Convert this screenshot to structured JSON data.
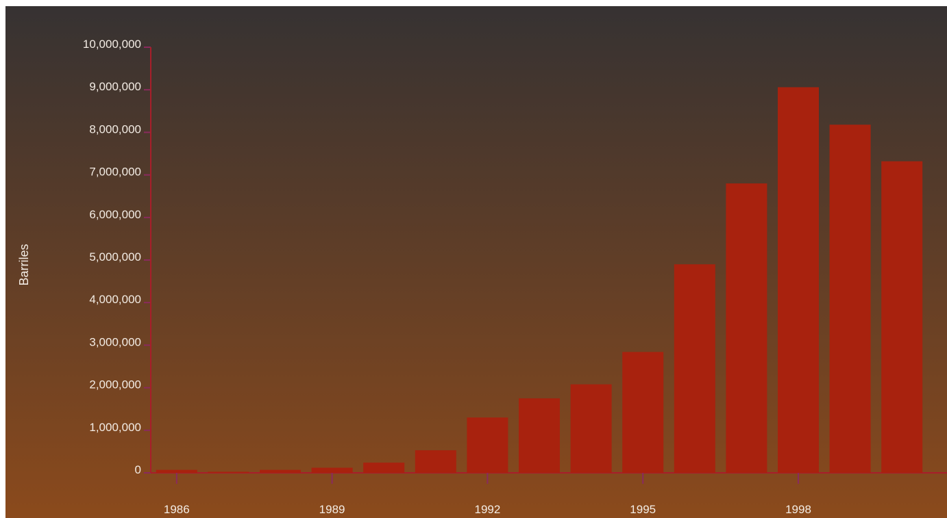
{
  "chart_data": {
    "type": "bar",
    "title": "",
    "xlabel": "",
    "ylabel": "Barriles",
    "ylim": [
      0,
      10000000
    ],
    "y_ticks": [
      0,
      1000000,
      2000000,
      3000000,
      4000000,
      5000000,
      6000000,
      7000000,
      8000000,
      9000000,
      10000000
    ],
    "y_tick_labels": [
      "0",
      "1,000,000",
      "2,000,000",
      "3,000,000",
      "4,000,000",
      "5,000,000",
      "6,000,000",
      "7,000,000",
      "8,000,000",
      "9,000,000",
      "10,000,000"
    ],
    "categories": [
      "1986",
      "1987",
      "1988",
      "1989",
      "1990",
      "1991",
      "1992",
      "1993",
      "1994",
      "1995",
      "1996",
      "1997",
      "1998",
      "1999",
      "2000"
    ],
    "x_tick_labels": [
      "1986",
      "1989",
      "1992",
      "1995",
      "1998"
    ],
    "values": [
      70000,
      25000,
      70000,
      120000,
      240000,
      530000,
      1300000,
      1750000,
      2080000,
      2840000,
      4900000,
      6800000,
      9060000,
      8180000,
      7320000
    ],
    "grid": false,
    "legend": "none",
    "colors": {
      "bar": "#a8220e",
      "axis": "#a81e2a",
      "tick": "#8a2a5e",
      "background_top": "#363232",
      "background_bottom": "#8b4a1c",
      "text": "#f3ece4"
    }
  }
}
